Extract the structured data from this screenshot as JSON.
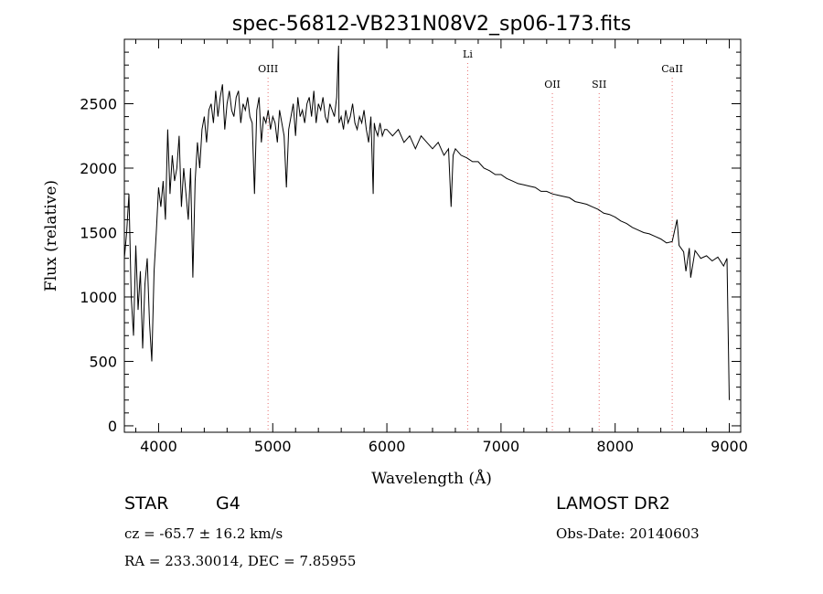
{
  "chart_data": {
    "type": "line",
    "title": "spec-56812-VB231N08V2_sp06-173.fits",
    "xlabel": "Wavelength (Å)",
    "ylabel": "Flux (relative)",
    "xlim": [
      3700,
      9100
    ],
    "ylim": [
      -50,
      3000
    ],
    "xticks": [
      4000,
      5000,
      6000,
      7000,
      8000,
      9000
    ],
    "yticks": [
      0,
      500,
      1000,
      1500,
      2000,
      2500
    ],
    "grid": false,
    "line_color": "#000000",
    "marker_color": "#e87070",
    "spectral_lines": [
      {
        "label": "OIII",
        "wavelength": 4959
      },
      {
        "label": "Li",
        "wavelength": 6708
      },
      {
        "label": "OII",
        "wavelength": 7450
      },
      {
        "label": "SII",
        "wavelength": 7860
      },
      {
        "label": "CaII",
        "wavelength": 8500
      }
    ],
    "series": [
      {
        "x": [
          3700,
          3720,
          3740,
          3760,
          3780,
          3800,
          3820,
          3840,
          3860,
          3880,
          3900,
          3920,
          3940,
          3960,
          3980,
          4000,
          4020,
          4040,
          4060,
          4080,
          4100,
          4120,
          4140,
          4160,
          4180,
          4200,
          4220,
          4240,
          4260,
          4280,
          4300,
          4320,
          4340,
          4360,
          4380,
          4400,
          4420,
          4440,
          4460,
          4480,
          4500,
          4520,
          4540,
          4560,
          4580,
          4600,
          4620,
          4640,
          4660,
          4680,
          4700,
          4720,
          4740,
          4760,
          4780,
          4800,
          4820,
          4840,
          4860,
          4880,
          4900,
          4920,
          4940,
          4960,
          4980,
          5000,
          5020,
          5040,
          5060,
          5080,
          5100,
          5120,
          5140,
          5160,
          5180,
          5200,
          5220,
          5240,
          5260,
          5280,
          5300,
          5320,
          5340,
          5360,
          5380,
          5400,
          5420,
          5440,
          5460,
          5480,
          5500,
          5520,
          5540,
          5560,
          5577,
          5580,
          5600,
          5620,
          5640,
          5660,
          5680,
          5700,
          5720,
          5740,
          5760,
          5780,
          5800,
          5820,
          5840,
          5860,
          5880,
          5890,
          5900,
          5920,
          5940,
          5960,
          5980,
          6000,
          6050,
          6100,
          6150,
          6200,
          6250,
          6300,
          6350,
          6400,
          6450,
          6500,
          6540,
          6563,
          6580,
          6600,
          6650,
          6700,
          6750,
          6800,
          6850,
          6900,
          6950,
          7000,
          7050,
          7100,
          7150,
          7200,
          7250,
          7300,
          7350,
          7400,
          7450,
          7500,
          7550,
          7600,
          7650,
          7700,
          7750,
          7800,
          7850,
          7900,
          7950,
          8000,
          8050,
          8100,
          8150,
          8200,
          8250,
          8300,
          8350,
          8400,
          8450,
          8500,
          8542,
          8560,
          8600,
          8620,
          8650,
          8662,
          8700,
          8750,
          8800,
          8850,
          8900,
          8950,
          8980,
          9000
        ],
        "y": [
          1300,
          1500,
          1800,
          1000,
          700,
          1400,
          900,
          1200,
          600,
          1100,
          1300,
          800,
          500,
          1200,
          1500,
          1850,
          1700,
          1900,
          1600,
          2300,
          1800,
          2100,
          1900,
          2000,
          2250,
          1700,
          2000,
          1800,
          1600,
          2000,
          1150,
          1900,
          2200,
          2000,
          2300,
          2400,
          2200,
          2450,
          2500,
          2350,
          2600,
          2400,
          2550,
          2650,
          2300,
          2500,
          2600,
          2450,
          2400,
          2550,
          2600,
          2350,
          2500,
          2450,
          2550,
          2400,
          2350,
          1800,
          2450,
          2550,
          2200,
          2400,
          2350,
          2450,
          2300,
          2400,
          2350,
          2200,
          2450,
          2350,
          2250,
          1850,
          2300,
          2400,
          2500,
          2250,
          2550,
          2400,
          2450,
          2350,
          2500,
          2550,
          2400,
          2600,
          2350,
          2500,
          2450,
          2550,
          2400,
          2350,
          2500,
          2450,
          2400,
          2550,
          2950,
          2350,
          2400,
          2300,
          2450,
          2350,
          2400,
          2500,
          2350,
          2300,
          2400,
          2350,
          2450,
          2300,
          2200,
          2400,
          1800,
          2350,
          2300,
          2250,
          2350,
          2250,
          2300,
          2300,
          2250,
          2300,
          2200,
          2250,
          2150,
          2250,
          2200,
          2150,
          2200,
          2100,
          2150,
          1700,
          2100,
          2150,
          2100,
          2080,
          2050,
          2050,
          2000,
          1980,
          1950,
          1950,
          1920,
          1900,
          1880,
          1870,
          1860,
          1850,
          1820,
          1820,
          1800,
          1790,
          1780,
          1770,
          1740,
          1730,
          1720,
          1700,
          1680,
          1650,
          1640,
          1620,
          1590,
          1570,
          1540,
          1520,
          1500,
          1490,
          1470,
          1450,
          1420,
          1430,
          1600,
          1400,
          1350,
          1200,
          1380,
          1150,
          1360,
          1300,
          1320,
          1280,
          1310,
          1240,
          1300,
          200
        ]
      }
    ]
  },
  "info": {
    "object_class": "STAR",
    "subclass": "G4",
    "survey": "LAMOST DR2",
    "cz": "cz = -65.7 ± 16.2 km/s",
    "obs_date": "Obs-Date: 20140603",
    "coords": "RA = 233.30014, DEC =   7.85955"
  }
}
